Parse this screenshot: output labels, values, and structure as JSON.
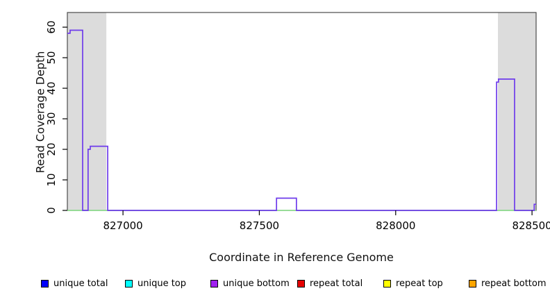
{
  "figure": {
    "xlabel": "Coordinate in Reference Genome",
    "ylabel": "Read Coverage Depth"
  },
  "chart_data": {
    "type": "line",
    "subtype": "step-coverage",
    "title": "",
    "xlabel": "Coordinate in Reference Genome",
    "ylabel": "Read Coverage Depth",
    "xlim": [
      826796,
      828515
    ],
    "ylim": [
      0,
      64.8
    ],
    "x_ticks": [
      827000,
      827500,
      828000,
      828500
    ],
    "y_ticks": [
      0,
      10,
      20,
      30,
      40,
      50,
      60
    ],
    "grid": false,
    "box_color": "#4b4b4b",
    "shaded_regions": {
      "color": "#dcdcdc",
      "regions": [
        [
          826796,
          826939
        ],
        [
          828375,
          828515
        ]
      ]
    },
    "series": [
      {
        "name": "zero-baseline-green",
        "color": "#8fdc8f",
        "style": "line",
        "runs": [
          [
            826796,
            828515,
            0
          ]
        ]
      },
      {
        "name": "coverage-step-purple",
        "color": "#6e3beb",
        "style": "step",
        "runs": [
          [
            826796,
            826806,
            58
          ],
          [
            826806,
            826852,
            59
          ],
          [
            826852,
            826872,
            0
          ],
          [
            826872,
            826880,
            20
          ],
          [
            826880,
            826944,
            21
          ],
          [
            826944,
            827563,
            0
          ],
          [
            827563,
            827636,
            4
          ],
          [
            827636,
            828370,
            0
          ],
          [
            828370,
            828377,
            42
          ],
          [
            828377,
            828436,
            43
          ],
          [
            828436,
            828508,
            0
          ],
          [
            828508,
            828515,
            2
          ]
        ]
      }
    ],
    "legend": {
      "position": "bottom",
      "entries": [
        {
          "label": "unique total",
          "color": "#0000ff"
        },
        {
          "label": "unique top",
          "color": "#00ffff"
        },
        {
          "label": "unique bottom",
          "color": "#a020f0"
        },
        {
          "label": "repeat total",
          "color": "#e60000"
        },
        {
          "label": "repeat top",
          "color": "#ffff00"
        },
        {
          "label": "repeat bottom",
          "color": "#ffa500"
        }
      ]
    }
  }
}
